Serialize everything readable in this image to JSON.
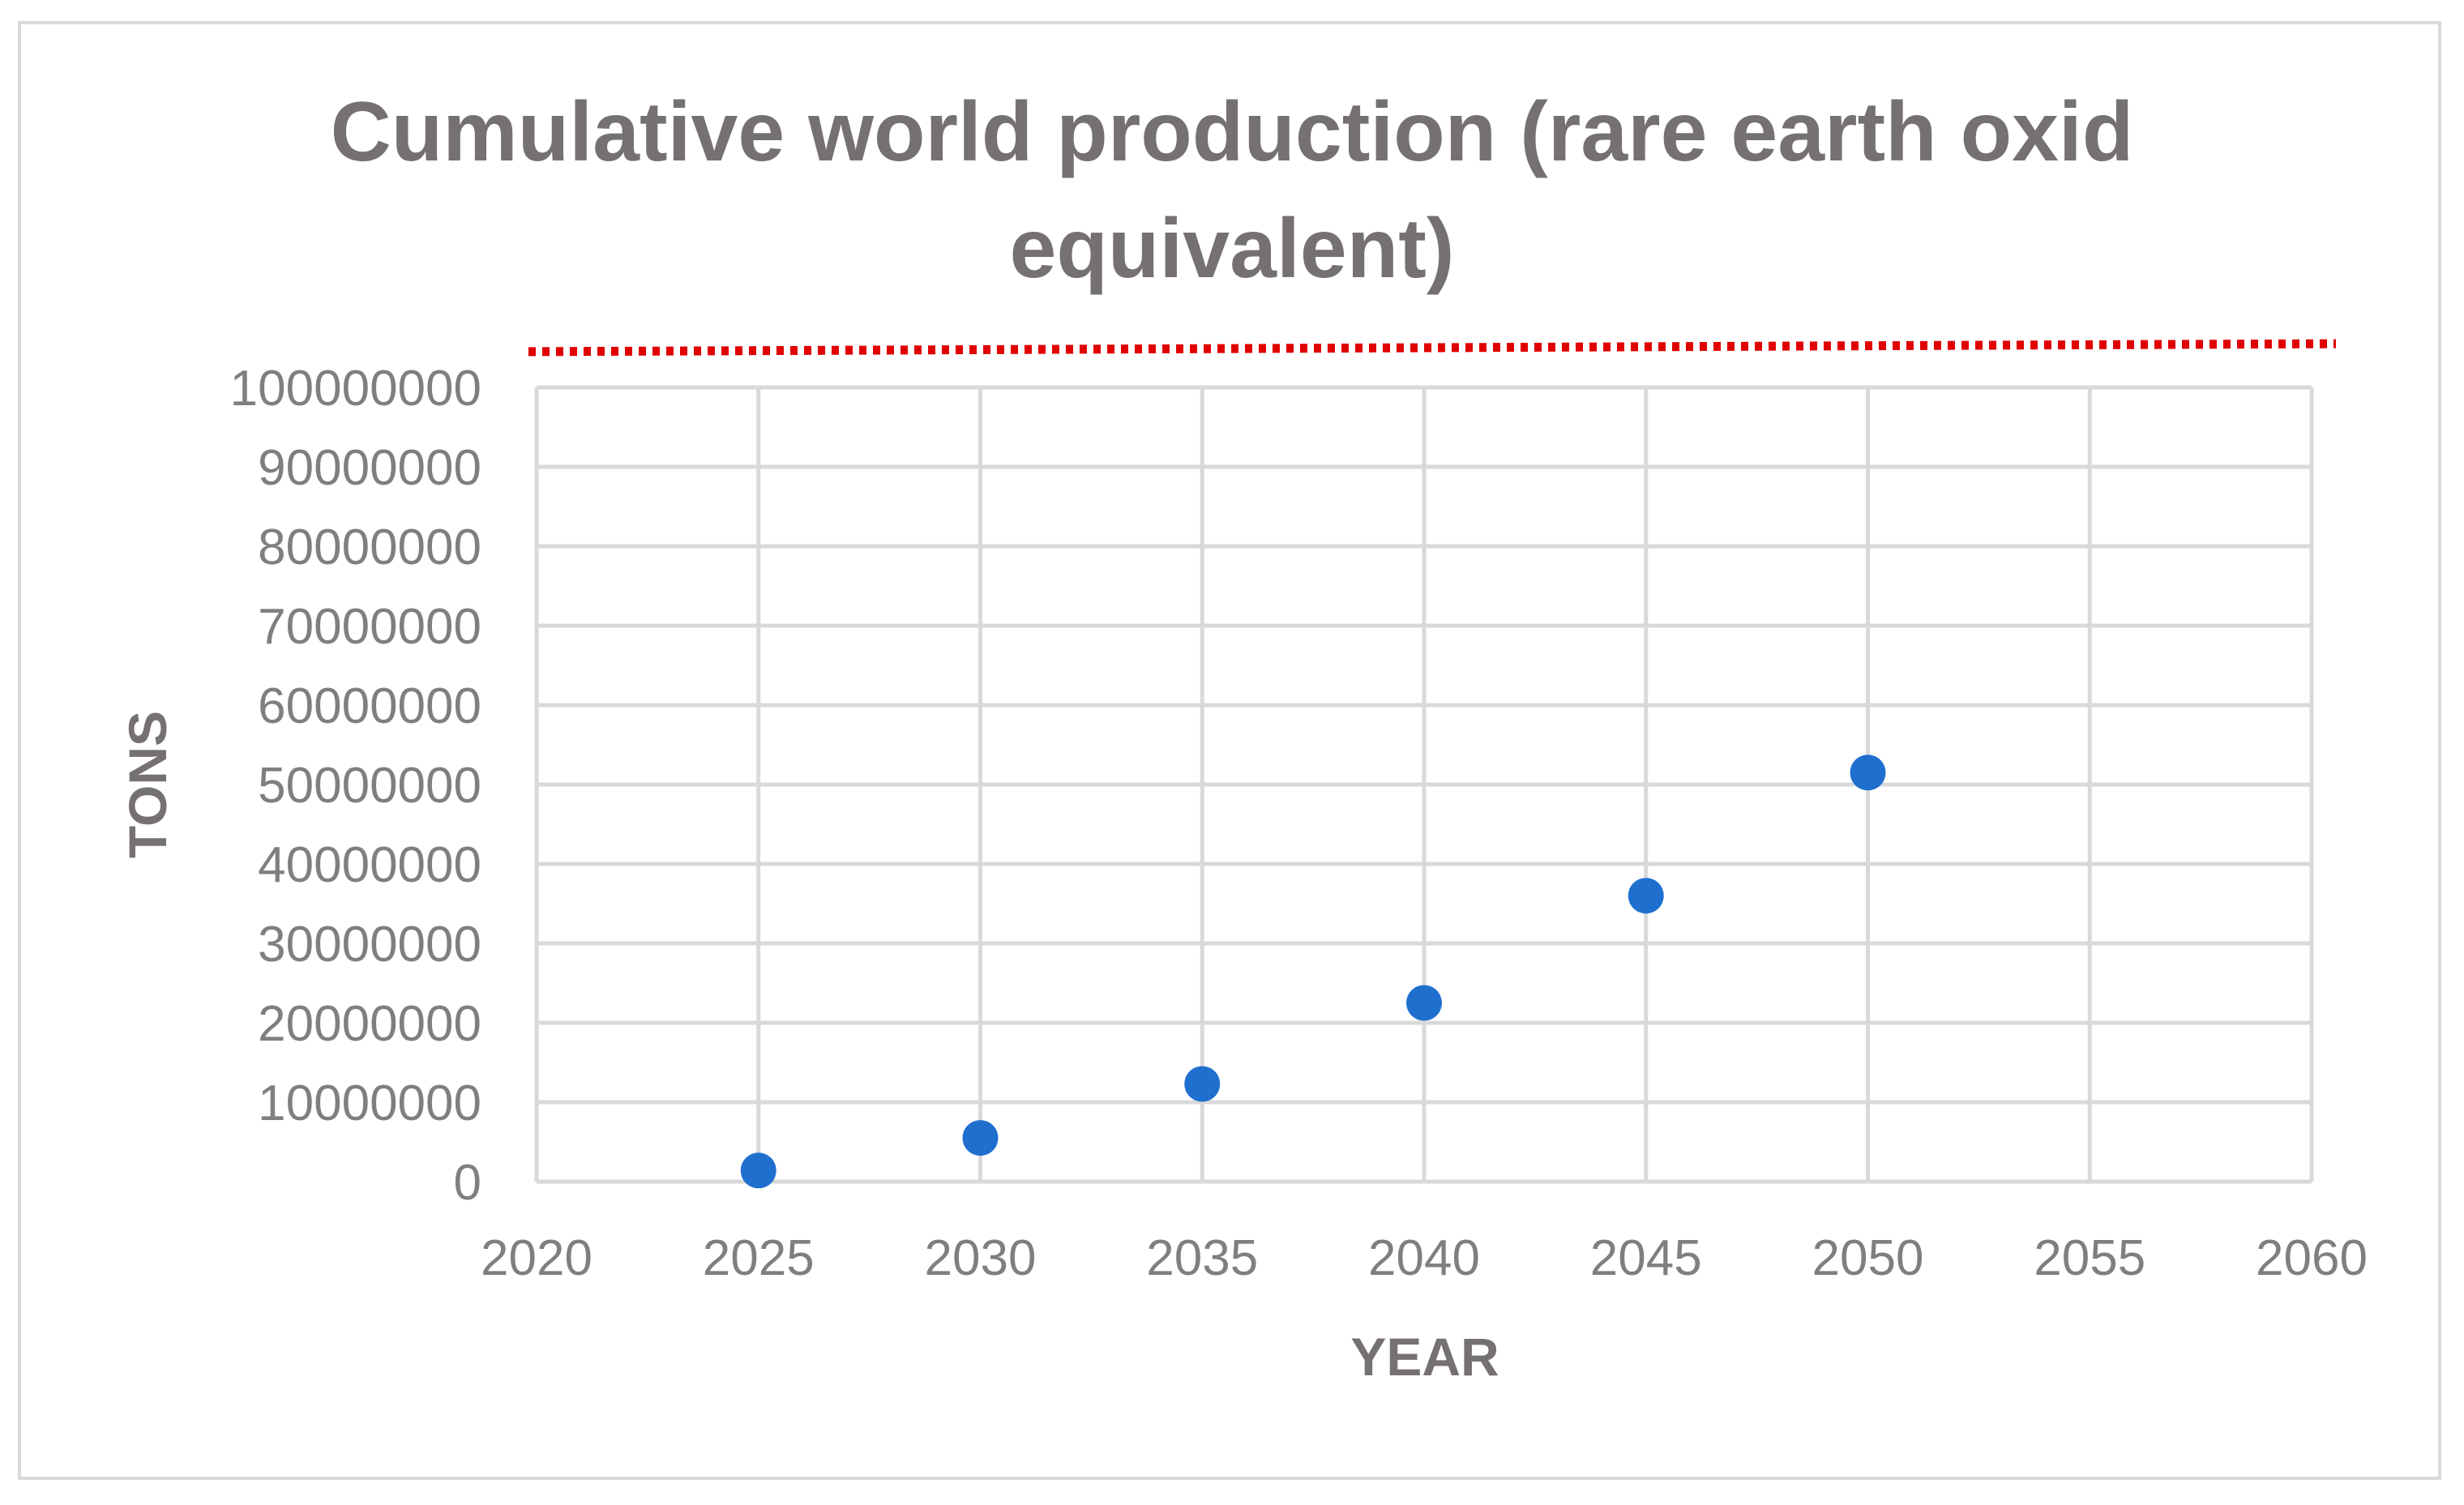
{
  "chart_data": {
    "type": "scatter",
    "title_lines": [
      "Cumulative world production (rare earth oxid",
      "equivalent)"
    ],
    "xlabel": "YEAR",
    "ylabel": "TONS",
    "xlim": [
      2020,
      2060
    ],
    "ylim": [
      0,
      100000000
    ],
    "x_ticks": [
      2020,
      2025,
      2030,
      2035,
      2040,
      2045,
      2050,
      2055,
      2060
    ],
    "y_ticks": [
      0,
      10000000,
      20000000,
      30000000,
      40000000,
      50000000,
      60000000,
      70000000,
      80000000,
      90000000,
      100000000
    ],
    "grid": true,
    "series": [
      {
        "color": "#1f6fcf",
        "x": [
          2025,
          2030,
          2035,
          2040,
          2045,
          2050
        ],
        "y": [
          1400000,
          5500000,
          12300000,
          22500000,
          36000000,
          51500000
        ]
      }
    ],
    "reference_line": {
      "style": "dotted",
      "color": "#e00000",
      "y": [
        104500000,
        105500000
      ]
    },
    "colors": {
      "grid": "#d9d9d9",
      "text": "#7f7f7f",
      "title": "#767171"
    }
  }
}
